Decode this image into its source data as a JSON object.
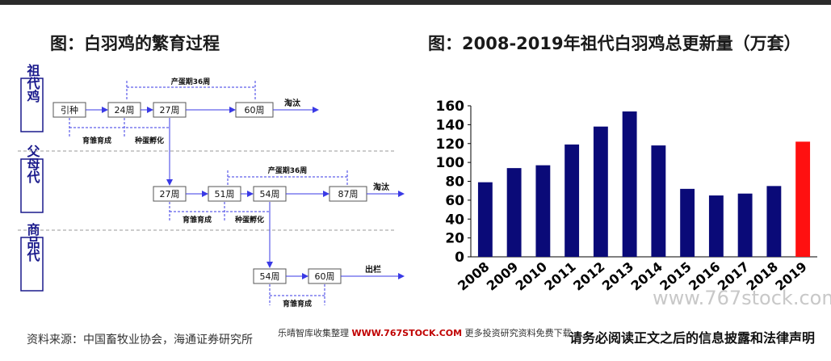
{
  "titles": {
    "left": "图：白羽鸡的繁育过程",
    "right": "图：2008-2019年祖代白羽鸡总更新量（万套）"
  },
  "diagram": {
    "generations": [
      "祖代鸡",
      "父母代",
      "商品代"
    ],
    "gp": {
      "boxes": [
        "引种",
        "24周",
        "27周",
        "60周"
      ],
      "laying": "产蛋期36周",
      "end": "淘汰",
      "rearing": "育雏育成",
      "hatch": "种蛋孵化"
    },
    "ps": {
      "boxes": [
        "27周",
        "51周",
        "54周",
        "87周"
      ],
      "laying": "产蛋期36周",
      "end": "淘汰",
      "rearing": "育雏育成",
      "hatch": "种蛋孵化"
    },
    "cm": {
      "boxes": [
        "54周",
        "60周"
      ],
      "end": "出栏",
      "rearing": "育雏育成"
    }
  },
  "chart_data": {
    "type": "bar",
    "title": "图：2008-2019年祖代白羽鸡总更新量（万套）",
    "categories": [
      "2008",
      "2009",
      "2010",
      "2011",
      "2012",
      "2013",
      "2014",
      "2015",
      "2016",
      "2017",
      "2018",
      "2019"
    ],
    "values": [
      79,
      94,
      97,
      119,
      138,
      154,
      118,
      72,
      65,
      67,
      75,
      122
    ],
    "ylim": [
      0,
      160
    ],
    "yticks": [
      "0",
      "20",
      "40",
      "60",
      "80",
      "100",
      "120",
      "140",
      "160"
    ],
    "colors": {
      "bar": "#0a0a78",
      "highlight": "#ff1010",
      "highlight_index": 11
    },
    "grid": false,
    "legend": "none"
  },
  "footer": {
    "source": "资料来源：中国畜牧业协会，海通证券研究所",
    "promo_text": "乐晴智库收集整理",
    "promo_site": "WWW.767STOCK.COM",
    "promo_tail": "更多投资研究资料免费下载",
    "disclaimer": "请务必阅读正文之后的信息披露和法律声明",
    "watermark": "www.767stock.com"
  }
}
